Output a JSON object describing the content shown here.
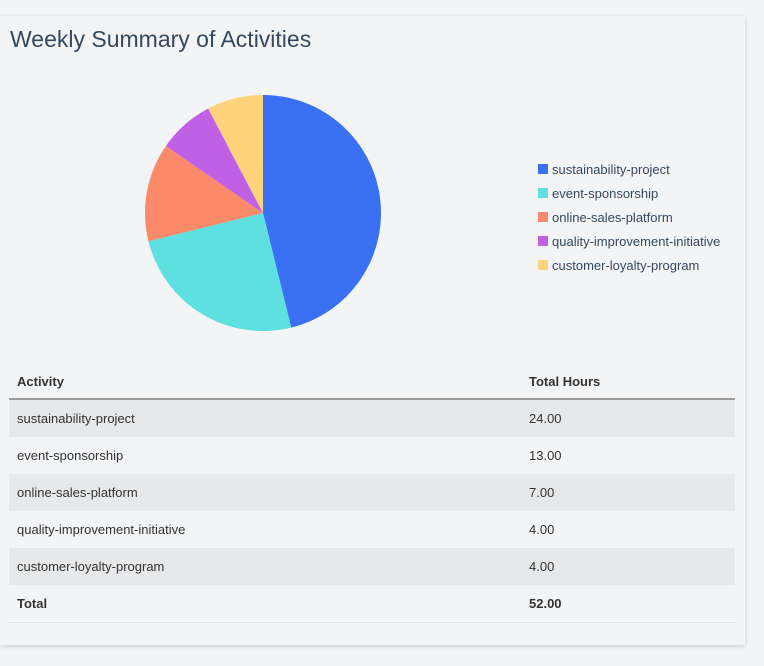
{
  "title": "Weekly Summary of Activities",
  "chart_data": {
    "type": "pie",
    "categories": [
      "sustainability-project",
      "event-sponsorship",
      "online-sales-platform",
      "quality-improvement-initiative",
      "customer-loyalty-program"
    ],
    "values": [
      24,
      13,
      7,
      4,
      4
    ],
    "colors": [
      "#3a71f4",
      "#5fe0e0",
      "#fb8a6a",
      "#c061e5",
      "#ffd37b"
    ],
    "legend_position": "right"
  },
  "table": {
    "headers": [
      "Activity",
      "Total Hours"
    ],
    "rows": [
      [
        "sustainability-project",
        "24.00"
      ],
      [
        "event-sponsorship",
        "13.00"
      ],
      [
        "online-sales-platform",
        "7.00"
      ],
      [
        "quality-improvement-initiative",
        "4.00"
      ],
      [
        "customer-loyalty-program",
        "4.00"
      ]
    ],
    "total": [
      "Total",
      "52.00"
    ]
  }
}
